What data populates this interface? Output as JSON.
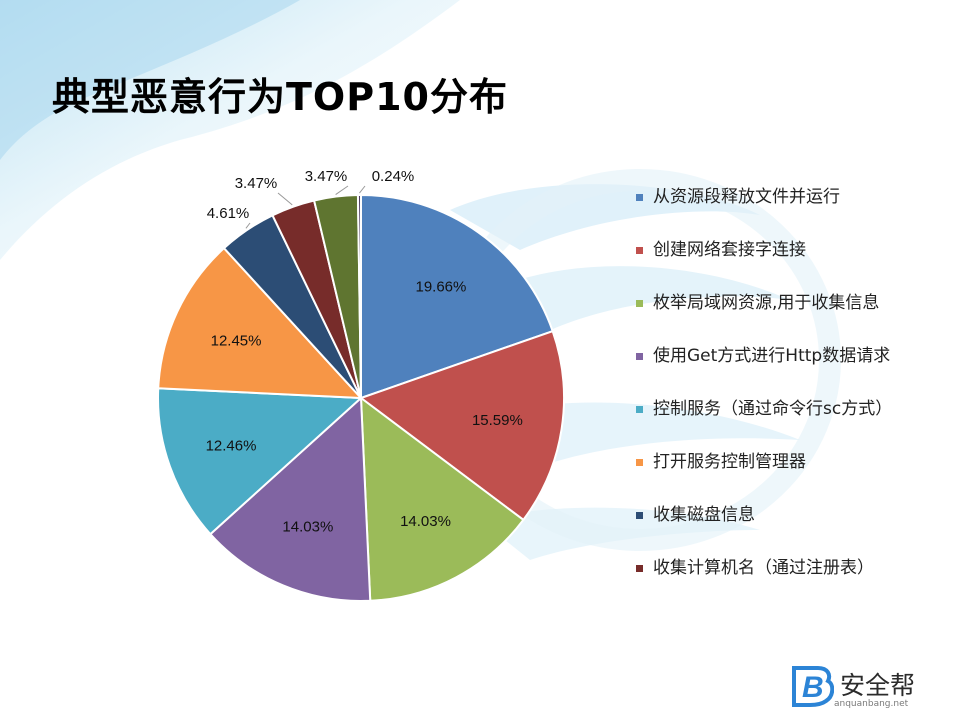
{
  "slide": {
    "title": "典型恶意行为TOP10分布"
  },
  "brand": {
    "name": "安全帮",
    "domain": "anquanbang.net",
    "mark": "B",
    "color": "#2c84d6"
  },
  "chart_data": {
    "type": "pie",
    "title": "典型恶意行为TOP10分布",
    "legend_position": "right",
    "slices": [
      {
        "label": "从资源段释放文件并运行",
        "value": 19.66,
        "display": "19.66%",
        "color": "#4f81bd",
        "in_legend": true
      },
      {
        "label": "创建网络套接字连接",
        "value": 15.59,
        "display": "15.59%",
        "color": "#c0504d",
        "in_legend": true
      },
      {
        "label": "枚举局域网资源,用于收集信息",
        "value": 14.03,
        "display": "14.03%",
        "color": "#9bbb59",
        "in_legend": true
      },
      {
        "label": "使用Get方式进行Http数据请求",
        "value": 14.03,
        "display": "14.03%",
        "color": "#8064a2",
        "in_legend": true
      },
      {
        "label": "控制服务（通过命令行sc方式）",
        "value": 12.46,
        "display": "12.46%",
        "color": "#4bacc6",
        "in_legend": true
      },
      {
        "label": "打开服务控制管理器",
        "value": 12.45,
        "display": "12.45%",
        "color": "#f79646",
        "in_legend": true
      },
      {
        "label": "收集磁盘信息",
        "value": 4.61,
        "display": "4.61%",
        "color": "#2c4d75",
        "in_legend": true
      },
      {
        "label": "收集计算机名（通过注册表）",
        "value": 3.47,
        "display": "3.47%",
        "color": "#772c2a",
        "in_legend": true
      },
      {
        "label": "",
        "value": 3.47,
        "display": "3.47%",
        "color": "#5f7530",
        "in_legend": false
      },
      {
        "label": "",
        "value": 0.24,
        "display": "0.24%",
        "color": "#4d3b62",
        "in_legend": false
      }
    ]
  }
}
